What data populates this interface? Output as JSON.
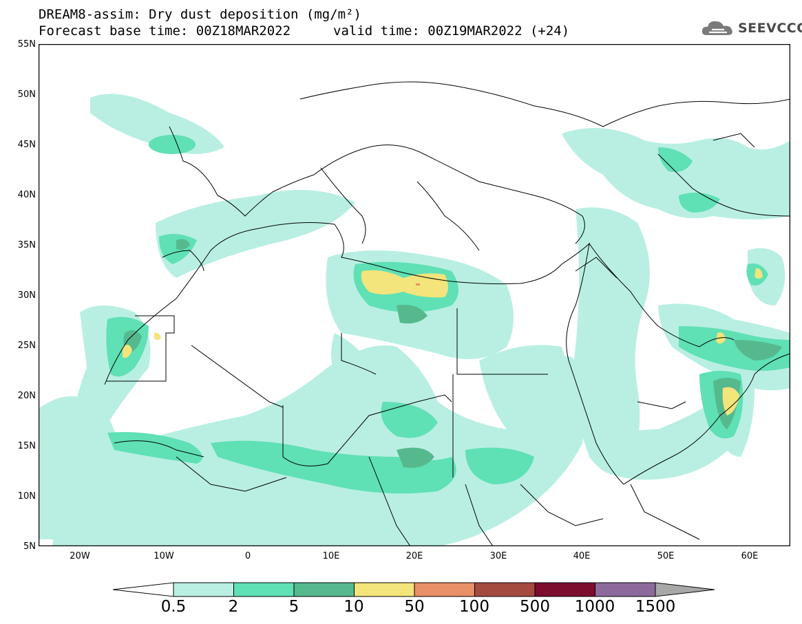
{
  "title": {
    "line1": "DREAM8-assim: Dry dust deposition (mg/m²)",
    "line2_left": "Forecast base time: 00Z18MAR2022",
    "line2_right": "valid time: 00Z19MAR2022 (+24)"
  },
  "logo": {
    "text": "SEEVCCC",
    "icon": "cloud-logo-icon"
  },
  "axes": {
    "lat_labels": [
      "55N",
      "50N",
      "45N",
      "40N",
      "35N",
      "30N",
      "25N",
      "20N",
      "15N",
      "10N",
      "5N"
    ],
    "lon_labels": [
      "20W",
      "10W",
      "0",
      "10E",
      "20E",
      "30E",
      "40E",
      "50E",
      "60E"
    ],
    "lat_range": [
      5,
      55
    ],
    "lon_range": [
      -25,
      65
    ]
  },
  "legend": {
    "labels": [
      "0.5",
      "2",
      "5",
      "10",
      "50",
      "100",
      "500",
      "1000",
      "1500"
    ],
    "colors": [
      "#b9efe3",
      "#5fe0b5",
      "#56b98e",
      "#f3e47b",
      "#e99068",
      "#a54a3e",
      "#7c0d2f",
      "#8c6a9b",
      "#a8a8a8"
    ]
  }
}
